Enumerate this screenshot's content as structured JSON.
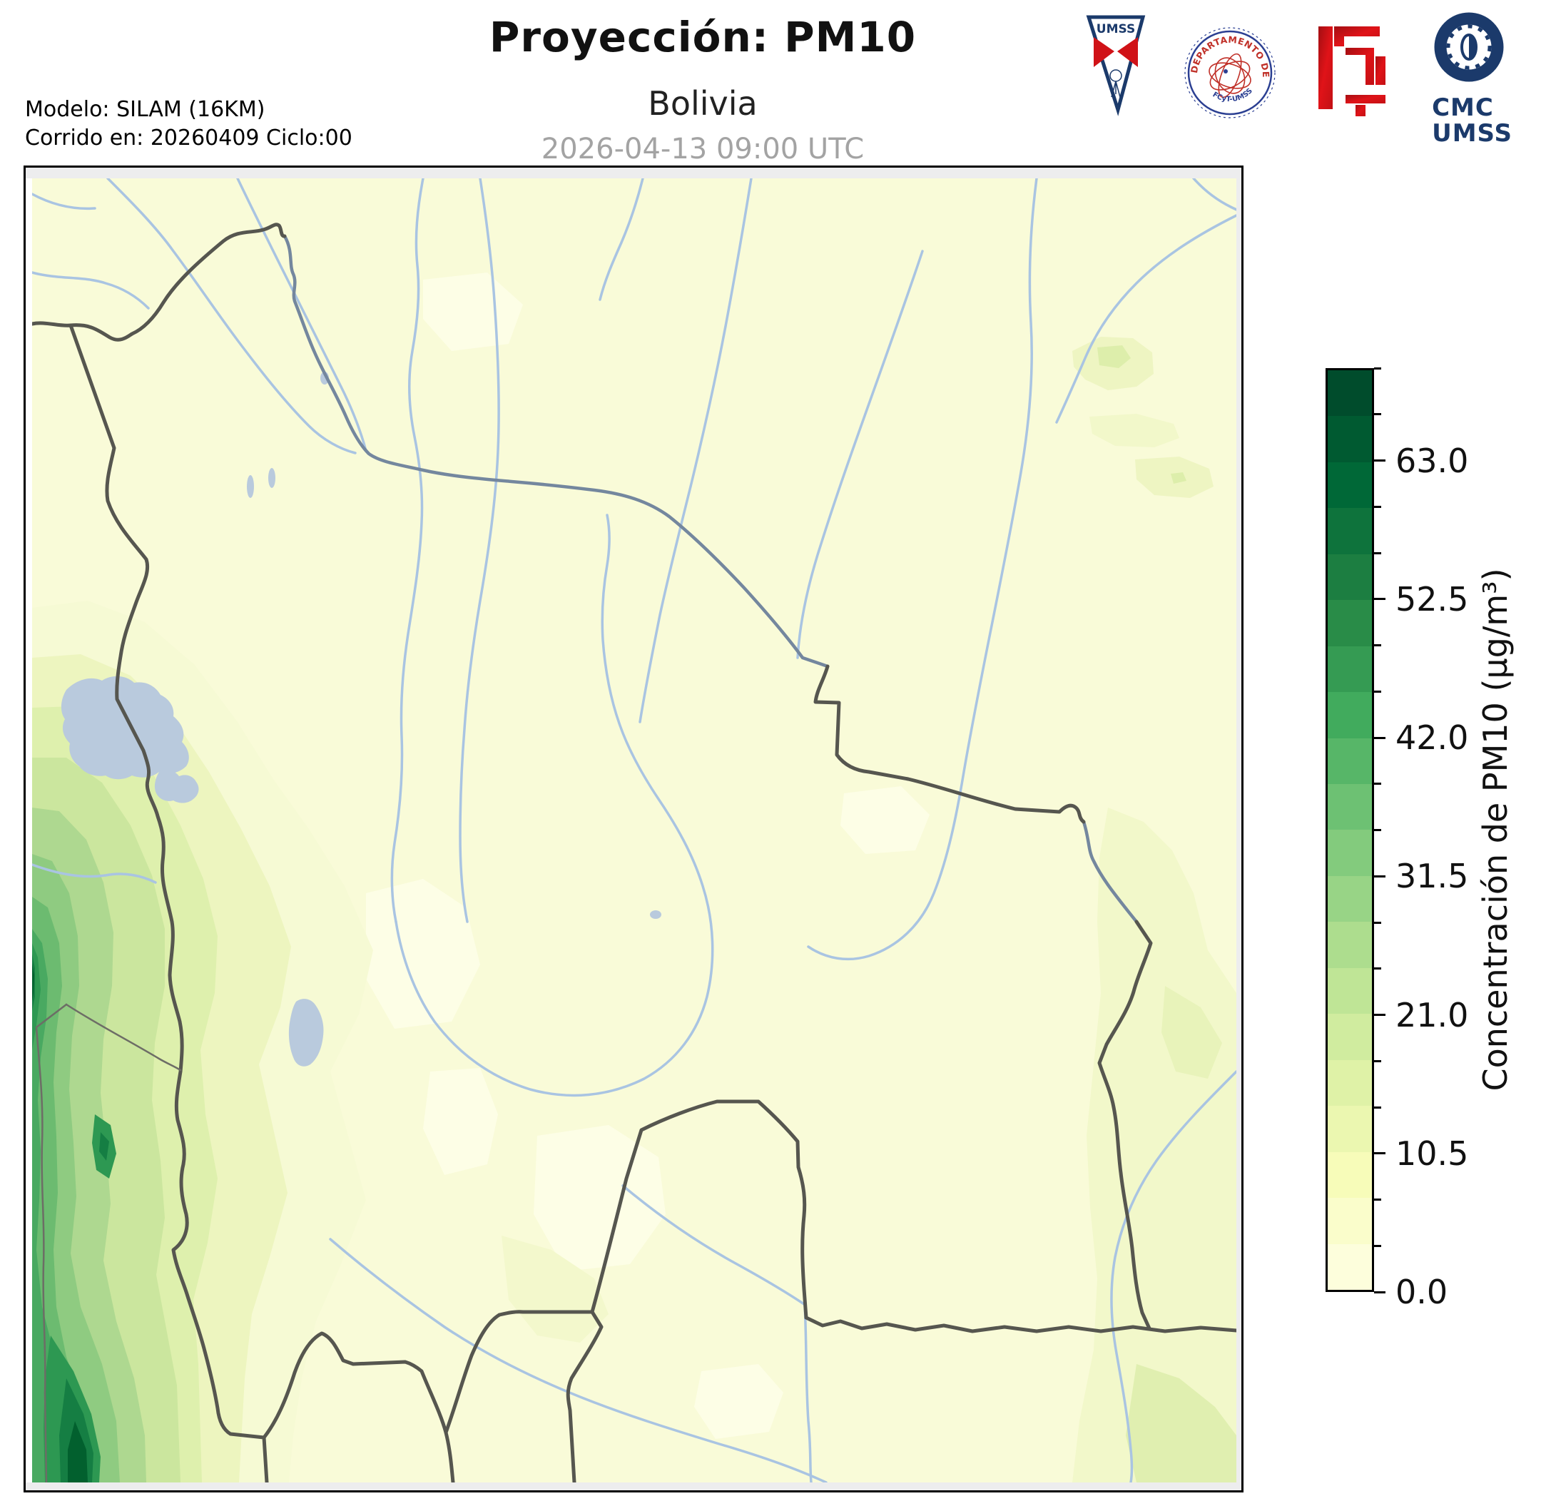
{
  "header": {
    "title": "Proyección: PM10",
    "subtitle": "Bolivia",
    "datetime": "2026-04-13 09:00 UTC",
    "model_line1": "Modelo: SILAM (16KM)",
    "model_line2": "Corrido en: 20260409 Ciclo:00"
  },
  "logos": {
    "umss_pennant_label": "UMSS",
    "physics_seal_text": "DEPARTAMENTO DE FÍSICA",
    "physics_seal_subtext": "FCyT-UMSS",
    "cmc_line1": "CMC",
    "cmc_line2": "UMSS"
  },
  "colorbar": {
    "label": "Concentración de PM10 (µg/m³)",
    "vmin": 0,
    "vmax": 70,
    "minor_step": 3.5,
    "major_ticks": [
      0.0,
      10.5,
      21.0,
      31.5,
      42.0,
      52.5,
      63.0
    ],
    "colors_bottom_to_top": [
      "#fdfedc",
      "#fafdcb",
      "#f7fcb9",
      "#ebf7b0",
      "#dff2a7",
      "#d0ec9f",
      "#bfe596",
      "#addd8e",
      "#98d486",
      "#83cb7d",
      "#6dc173",
      "#57b668",
      "#41ab5d",
      "#359b53",
      "#298c48",
      "#1c7e41",
      "#0e733c",
      "#006837",
      "#005a31",
      "#004c2c"
    ]
  },
  "chart_data": {
    "type": "heatmap",
    "title": "Proyección: PM10",
    "region": "Bolivia",
    "timestamp": "2026-04-13 09:00 UTC",
    "value_label": "Concentración de PM10 (µg/m³)",
    "colormap": "YlGn (pale yellow to dark green), 20 discrete bins",
    "scale": {
      "min": 0.0,
      "max": 70.0,
      "bin_width": 3.5,
      "major_tick_labels": [
        "0.0",
        "10.5",
        "21.0",
        "31.5",
        "42.0",
        "52.5",
        "63.0"
      ]
    },
    "spatial_pattern": [
      {
        "area": "Andes ridge along western Bolivia (Peru/Chile border strip)",
        "approx_value_ugm3": [
          14,
          70
        ]
      },
      {
        "area": "dark hotspot on west edge near lat. of Lake Titicaca / Poopó",
        "approx_value_ugm3": [
          56,
          70
        ]
      },
      {
        "area": "southwest corner ridge (bottom-left)",
        "approx_value_ugm3": [
          42,
          70
        ]
      },
      {
        "area": "central and northern lowlands",
        "approx_value_ugm3": [
          0,
          7
        ]
      },
      {
        "area": "small patches near eastern (Brazil) border",
        "approx_value_ugm3": [
          7,
          17.5
        ]
      },
      {
        "area": "broad faint band in far southeast",
        "approx_value_ugm3": [
          3.5,
          14
        ]
      }
    ],
    "map_features": [
      "country borders (dark gray)",
      "rivers (light blue)",
      "Lake Titicaca",
      "Lake Poopó"
    ]
  }
}
